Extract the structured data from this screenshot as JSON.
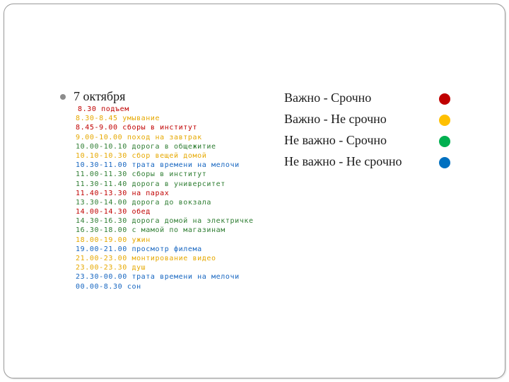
{
  "slide": {
    "title": "7 октября",
    "schedule": [
      {
        "text": "8.30 подъем",
        "color": "#c00000"
      },
      {
        "text": "8.30-8.45 умывание",
        "color": "#e6a800"
      },
      {
        "text": "8.45-9.00 сборы в институт",
        "color": "#c00000"
      },
      {
        "text": "9.00-10.00 поход на завтрак",
        "color": "#e6a800"
      },
      {
        "text": "10.00-10.10 дорога в общежитие",
        "color": "#2e7d32"
      },
      {
        "text": "10.10-10.30 сбор вещей домой",
        "color": "#e6a800"
      },
      {
        "text": "10.30-11.00 трата времени на мелочи",
        "color": "#1565c0"
      },
      {
        "text": "11.00-11.30 сборы в институт",
        "color": "#2e7d32"
      },
      {
        "text": "11.30-11.40 дорога в университет",
        "color": "#2e7d32"
      },
      {
        "text": "11.40-13.30 на парах",
        "color": "#c00000"
      },
      {
        "text": "13.30-14.00 дорога до вокзала",
        "color": "#2e7d32"
      },
      {
        "text": "14.00-14.30 обед",
        "color": "#c00000"
      },
      {
        "text": "14.30-16.30 дорога домой на электричке",
        "color": "#2e7d32"
      },
      {
        "text": "16.30-18.00 с мамой по магазинам",
        "color": "#2e7d32"
      },
      {
        "text": "18.00-19.00 ужин",
        "color": "#e6a800"
      },
      {
        "text": "19.00-21.00 просмотр филема",
        "color": "#1565c0"
      },
      {
        "text": "21.00-23.00 монтирование видео",
        "color": "#e6a800"
      },
      {
        "text": "23.00-23.30 душ",
        "color": "#e6a800"
      },
      {
        "text": "23.30-00.00 трата времени на мелочи",
        "color": "#1565c0"
      },
      {
        "text": "00.00-8.30 сон",
        "color": "#1565c0"
      }
    ],
    "legend": [
      {
        "label": "Важно - Срочно",
        "color": "#c00000"
      },
      {
        "label": "Важно - Не срочно",
        "color": "#ffc000"
      },
      {
        "label": "Не важно - Срочно",
        "color": "#00b050"
      },
      {
        "label": "Не важно - Не срочно",
        "color": "#0070c0"
      }
    ]
  }
}
